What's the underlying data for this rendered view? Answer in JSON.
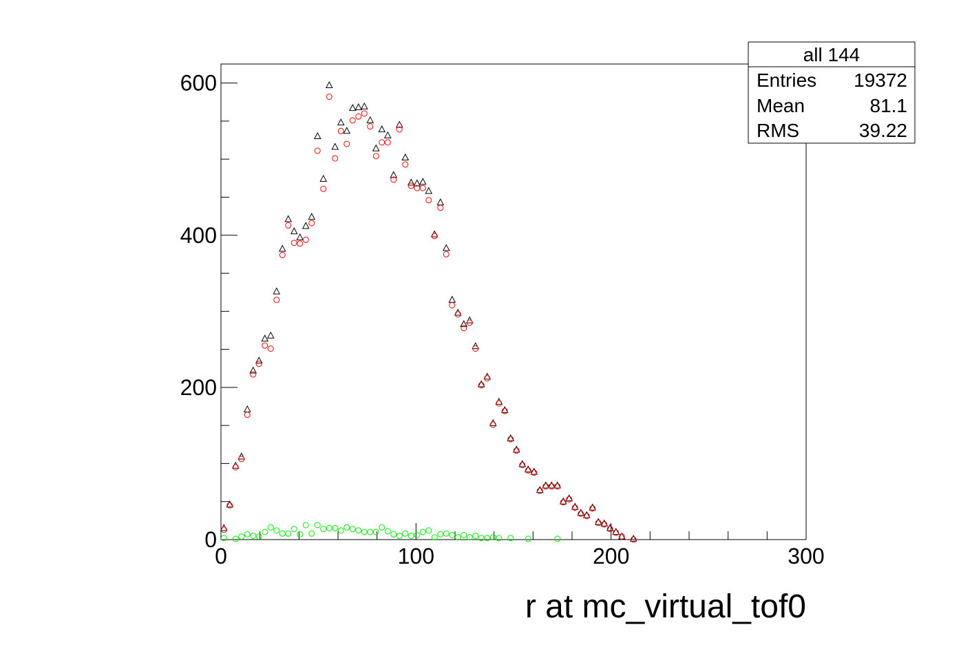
{
  "chart_data": {
    "type": "scatter",
    "xlabel": "r at mc_virtual_tof0",
    "ylabel": "",
    "xlim": [
      0,
      300
    ],
    "ylim": [
      0,
      625
    ],
    "x_ticks": [
      "0",
      "100",
      "200",
      "300"
    ],
    "y_ticks": [
      "0",
      "200",
      "400",
      "600"
    ],
    "x_tick_values": [
      0,
      100,
      200,
      300
    ],
    "y_tick_values": [
      0,
      200,
      400,
      600
    ],
    "x_minor_step": 20,
    "y_minor_step": 50,
    "grid": false,
    "stats_box": {
      "title": "all 144",
      "rows": [
        {
          "label": "Entries",
          "value": "19372"
        },
        {
          "label": "Mean",
          "value": "81.1"
        },
        {
          "label": "RMS",
          "value": "39.22"
        }
      ]
    },
    "series": [
      {
        "marker": "triangle",
        "color": "#000000",
        "points": [
          [
            1.5,
            15
          ],
          [
            4.5,
            46
          ],
          [
            7.5,
            97
          ],
          [
            10.5,
            109
          ],
          [
            13.5,
            171
          ],
          [
            16.5,
            222
          ],
          [
            19.5,
            235
          ],
          [
            22.5,
            264
          ],
          [
            25.5,
            268
          ],
          [
            28.5,
            326
          ],
          [
            31.5,
            382
          ],
          [
            34.5,
            421
          ],
          [
            37.5,
            405
          ],
          [
            40.5,
            397
          ],
          [
            43.5,
            412
          ],
          [
            46.5,
            424
          ],
          [
            49.5,
            530
          ],
          [
            52.5,
            474
          ],
          [
            55.5,
            597
          ],
          [
            58.5,
            516
          ],
          [
            61.5,
            548
          ],
          [
            64.5,
            537
          ],
          [
            67.5,
            567
          ],
          [
            70.5,
            568
          ],
          [
            73.5,
            569
          ],
          [
            76.5,
            551
          ],
          [
            79.5,
            514
          ],
          [
            82.5,
            539
          ],
          [
            85.5,
            531
          ],
          [
            88.5,
            479
          ],
          [
            91.5,
            545
          ],
          [
            94.5,
            502
          ],
          [
            97.5,
            469
          ],
          [
            100.5,
            468
          ],
          [
            103.5,
            470
          ],
          [
            106.5,
            458
          ],
          [
            109.5,
            401
          ],
          [
            112.5,
            443
          ],
          [
            115.5,
            383
          ],
          [
            118.5,
            315
          ],
          [
            121.5,
            298
          ],
          [
            124.5,
            283
          ],
          [
            127.5,
            288
          ],
          [
            130.5,
            254
          ],
          [
            133.5,
            204
          ],
          [
            136.5,
            214
          ],
          [
            139.5,
            153
          ],
          [
            142.5,
            181
          ],
          [
            145.5,
            170
          ],
          [
            148.5,
            133
          ],
          [
            151.5,
            118
          ],
          [
            154.5,
            99
          ],
          [
            157.5,
            92
          ],
          [
            160.5,
            89
          ],
          [
            163.5,
            65
          ],
          [
            166.5,
            71
          ],
          [
            169.5,
            71
          ],
          [
            172.5,
            71
          ],
          [
            175.5,
            50
          ],
          [
            178.5,
            54
          ],
          [
            181.5,
            43
          ],
          [
            184.5,
            35
          ],
          [
            187.5,
            32
          ],
          [
            190.5,
            42
          ],
          [
            193.5,
            23
          ],
          [
            196.5,
            21
          ],
          [
            199.5,
            15
          ],
          [
            202.5,
            10
          ],
          [
            205.5,
            4
          ],
          [
            211.5,
            1
          ]
        ]
      },
      {
        "marker": "circle",
        "color": "#ff0000",
        "points": [
          [
            1.5,
            13
          ],
          [
            4.5,
            45
          ],
          [
            7.5,
            95
          ],
          [
            10.5,
            106
          ],
          [
            13.5,
            164
          ],
          [
            16.5,
            217
          ],
          [
            19.5,
            231
          ],
          [
            22.5,
            255
          ],
          [
            25.5,
            251
          ],
          [
            28.5,
            315
          ],
          [
            31.5,
            374
          ],
          [
            34.5,
            413
          ],
          [
            37.5,
            390
          ],
          [
            40.5,
            389
          ],
          [
            43.5,
            394
          ],
          [
            46.5,
            416
          ],
          [
            49.5,
            511
          ],
          [
            52.5,
            461
          ],
          [
            55.5,
            582
          ],
          [
            58.5,
            501
          ],
          [
            61.5,
            537
          ],
          [
            64.5,
            520
          ],
          [
            67.5,
            551
          ],
          [
            70.5,
            556
          ],
          [
            73.5,
            560
          ],
          [
            76.5,
            543
          ],
          [
            79.5,
            504
          ],
          [
            82.5,
            522
          ],
          [
            85.5,
            522
          ],
          [
            88.5,
            473
          ],
          [
            91.5,
            539
          ],
          [
            94.5,
            493
          ],
          [
            97.5,
            465
          ],
          [
            100.5,
            462
          ],
          [
            103.5,
            462
          ],
          [
            106.5,
            446
          ],
          [
            109.5,
            399
          ],
          [
            112.5,
            436
          ],
          [
            115.5,
            375
          ],
          [
            118.5,
            308
          ],
          [
            121.5,
            296
          ],
          [
            124.5,
            278
          ],
          [
            127.5,
            285
          ],
          [
            130.5,
            251
          ],
          [
            133.5,
            203
          ],
          [
            136.5,
            212
          ],
          [
            139.5,
            151
          ],
          [
            142.5,
            179
          ],
          [
            145.5,
            169
          ],
          [
            148.5,
            132
          ],
          [
            151.5,
            117
          ],
          [
            154.5,
            98
          ],
          [
            157.5,
            91
          ],
          [
            160.5,
            88
          ],
          [
            163.5,
            64
          ],
          [
            166.5,
            70
          ],
          [
            169.5,
            70
          ],
          [
            172.5,
            70
          ],
          [
            175.5,
            49
          ],
          [
            178.5,
            53
          ],
          [
            181.5,
            42
          ],
          [
            184.5,
            34
          ],
          [
            187.5,
            31
          ],
          [
            190.5,
            41
          ],
          [
            193.5,
            22
          ],
          [
            196.5,
            20
          ],
          [
            199.5,
            14
          ],
          [
            202.5,
            9
          ],
          [
            205.5,
            4
          ],
          [
            211.5,
            0
          ]
        ]
      },
      {
        "marker": "circle",
        "color": "#00ee00",
        "points": [
          [
            1.5,
            2
          ],
          [
            7.5,
            1
          ],
          [
            10.5,
            4
          ],
          [
            13.5,
            7
          ],
          [
            16.5,
            5
          ],
          [
            19.5,
            4
          ],
          [
            22.5,
            10
          ],
          [
            25.5,
            16
          ],
          [
            28.5,
            12
          ],
          [
            31.5,
            8
          ],
          [
            34.5,
            8
          ],
          [
            37.5,
            14
          ],
          [
            40.5,
            7
          ],
          [
            43.5,
            19
          ],
          [
            46.5,
            8
          ],
          [
            49.5,
            19
          ],
          [
            52.5,
            14
          ],
          [
            55.5,
            15
          ],
          [
            58.5,
            15
          ],
          [
            61.5,
            12
          ],
          [
            64.5,
            16
          ],
          [
            67.5,
            14
          ],
          [
            70.5,
            12
          ],
          [
            73.5,
            10
          ],
          [
            76.5,
            10
          ],
          [
            79.5,
            10
          ],
          [
            82.5,
            16
          ],
          [
            85.5,
            11
          ],
          [
            88.5,
            7
          ],
          [
            91.5,
            5
          ],
          [
            94.5,
            8
          ],
          [
            97.5,
            5
          ],
          [
            100.5,
            6
          ],
          [
            103.5,
            10
          ],
          [
            106.5,
            12
          ],
          [
            109.5,
            3
          ],
          [
            112.5,
            7
          ],
          [
            115.5,
            8
          ],
          [
            118.5,
            6
          ],
          [
            121.5,
            3
          ],
          [
            124.5,
            6
          ],
          [
            127.5,
            3
          ],
          [
            130.5,
            5
          ],
          [
            133.5,
            2
          ],
          [
            136.5,
            2
          ],
          [
            139.5,
            3
          ],
          [
            142.5,
            2
          ],
          [
            148.5,
            2
          ],
          [
            157.5,
            1
          ],
          [
            172.5,
            1
          ]
        ]
      }
    ]
  }
}
